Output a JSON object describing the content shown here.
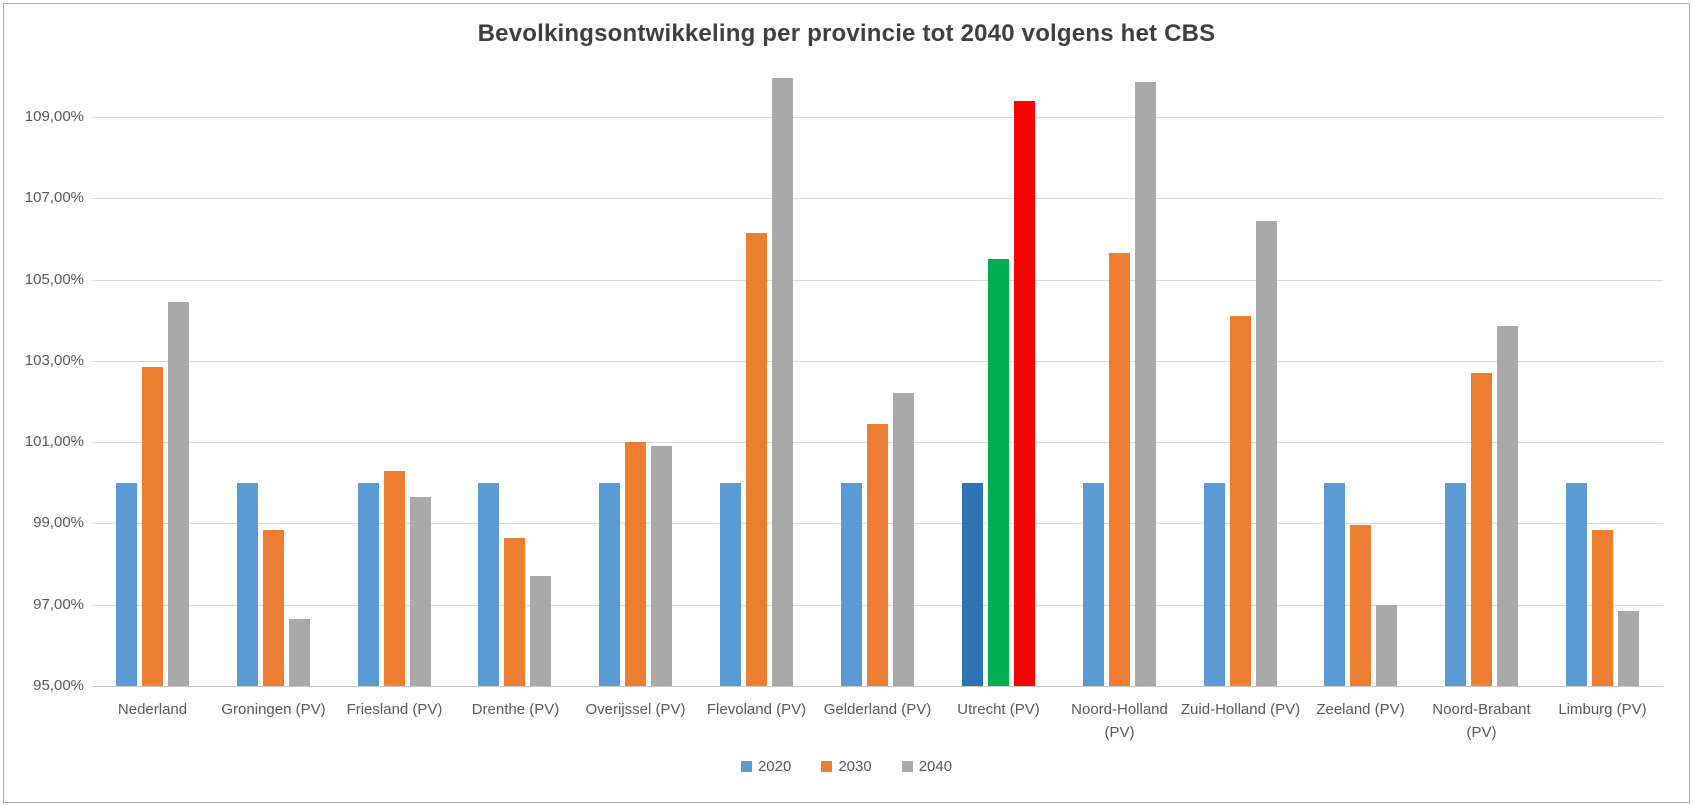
{
  "window": {
    "background_color": "#FFFFFF",
    "border_color": "#ABABAB"
  },
  "chart_data": {
    "type": "bar",
    "title": "Bevolkingsontwikkeling per provincie tot 2040 volgens het CBS",
    "xlabel": "",
    "ylabel": "",
    "grid": true,
    "categories": [
      "Nederland",
      "Groningen (PV)",
      "Friesland (PV)",
      "Drenthe (PV)",
      "Overijssel (PV)",
      "Flevoland (PV)",
      "Gelderland (PV)",
      "Utrecht (PV)",
      "Noord-Holland (PV)",
      "Zuid-Holland (PV)",
      "Zeeland (PV)",
      "Noord-Brabant (PV)",
      "Limburg (PV)"
    ],
    "series": [
      {
        "name": "2020",
        "color": "#5B9BD5",
        "values": [
          100.0,
          100.0,
          100.0,
          100.0,
          100.0,
          100.0,
          100.0,
          100.0,
          100.0,
          100.0,
          100.0,
          100.0,
          100.0
        ]
      },
      {
        "name": "2030",
        "color": "#ED7D31",
        "values": [
          102.85,
          98.85,
          100.3,
          98.65,
          101.0,
          106.15,
          101.45,
          105.5,
          105.65,
          104.1,
          98.95,
          102.7,
          98.85
        ]
      },
      {
        "name": "2040",
        "color": "#A9A9A9",
        "patterned": true,
        "values": [
          104.45,
          96.65,
          99.65,
          97.7,
          100.9,
          109.95,
          102.2,
          109.4,
          109.85,
          106.45,
          97.0,
          103.85,
          96.85
        ]
      }
    ],
    "highlight": {
      "category": "Utrecht (PV)",
      "category_index": 7,
      "bar_colors": [
        "#2E74B5",
        "#00B050",
        "#FF0000"
      ]
    },
    "y_axis": {
      "min": 95,
      "max": 110.4,
      "tick_values": [
        95,
        97,
        99,
        101,
        103,
        105,
        107,
        109
      ],
      "tick_labels": [
        "95,00%",
        "97,00%",
        "99,00%",
        "101,00%",
        "103,00%",
        "105,00%",
        "107,00%",
        "109,00%"
      ],
      "label_color": "#595959",
      "gridline_color": "#D9D9D9"
    },
    "legend": {
      "position": "bottom",
      "entries": [
        {
          "label": "2020",
          "color": "#5B9BD5"
        },
        {
          "label": "2030",
          "color": "#ED7D31"
        },
        {
          "label": "2040",
          "color": "#A9A9A9",
          "patterned": true
        }
      ]
    }
  }
}
